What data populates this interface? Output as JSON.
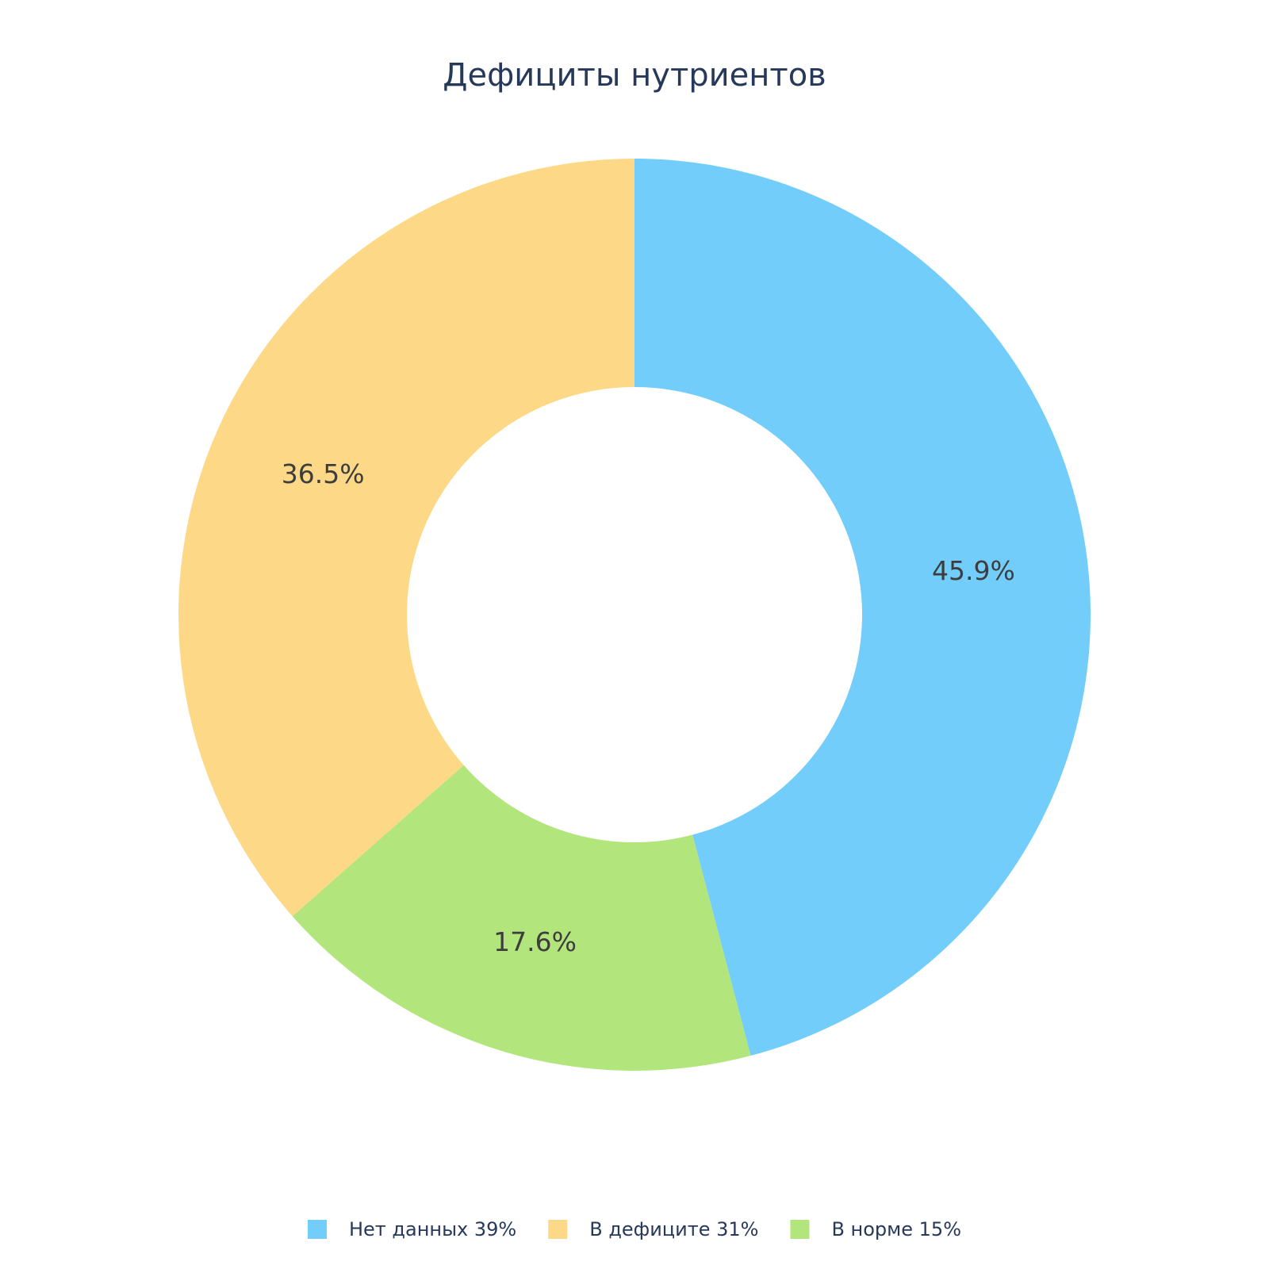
{
  "chart_data": {
    "type": "pie",
    "variant": "donut",
    "title": "Дефициты нутриентов",
    "categories": [
      "Нет данных 39%",
      "В дефиците 31%",
      "В норме 15%"
    ],
    "values": [
      45.9,
      17.6,
      36.5
    ],
    "slice_order": [
      0,
      2,
      1
    ],
    "labels": [
      "45.9%",
      "17.6%",
      "36.5%"
    ],
    "colors": [
      "#73cdfb",
      "#b2e57c",
      "#fdd886"
    ],
    "legend": {
      "position": "bottom",
      "items": [
        {
          "label": "Нет данных 39%",
          "color": "#73cdfb"
        },
        {
          "label": "В дефиците 31%",
          "color": "#fdd886"
        },
        {
          "label": "В норме 15%",
          "color": "#b2e57c"
        }
      ]
    }
  }
}
